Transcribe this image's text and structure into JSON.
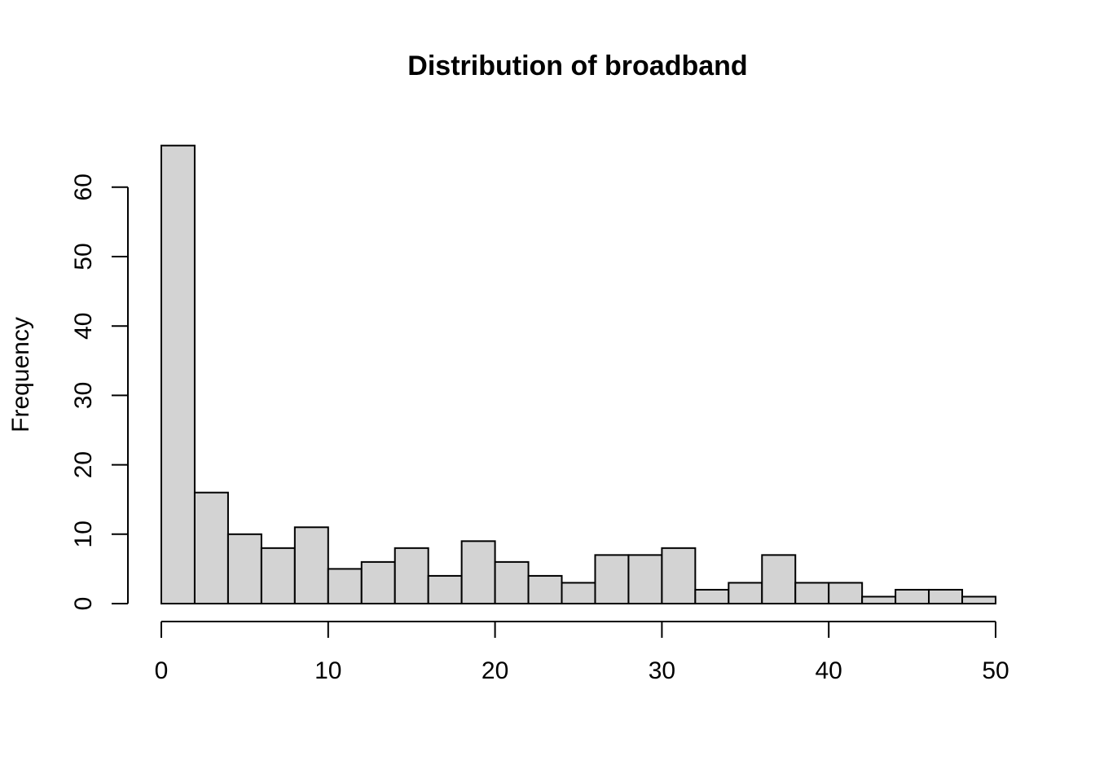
{
  "chart_data": {
    "type": "bar",
    "title": "Distribution of broadband",
    "xlabel": "",
    "ylabel": "Frequency",
    "bin_edges": [
      0,
      2,
      4,
      6,
      8,
      10,
      12,
      14,
      16,
      18,
      20,
      22,
      24,
      26,
      28,
      30,
      32,
      34,
      36,
      38,
      40,
      42,
      44,
      46,
      48,
      50
    ],
    "values": [
      66,
      16,
      10,
      8,
      11,
      5,
      6,
      8,
      4,
      9,
      6,
      4,
      3,
      7,
      7,
      8,
      2,
      3,
      7,
      3,
      3,
      1,
      2,
      2,
      1
    ],
    "xlim": [
      0,
      50
    ],
    "ylim": [
      0,
      66
    ],
    "x_ticks": [
      0,
      10,
      20,
      30,
      40,
      50
    ],
    "y_ticks": [
      0,
      10,
      20,
      30,
      40,
      50,
      60
    ],
    "grid": false,
    "colors": {
      "bar_fill": "#d3d3d3",
      "bar_stroke": "#000000"
    }
  }
}
